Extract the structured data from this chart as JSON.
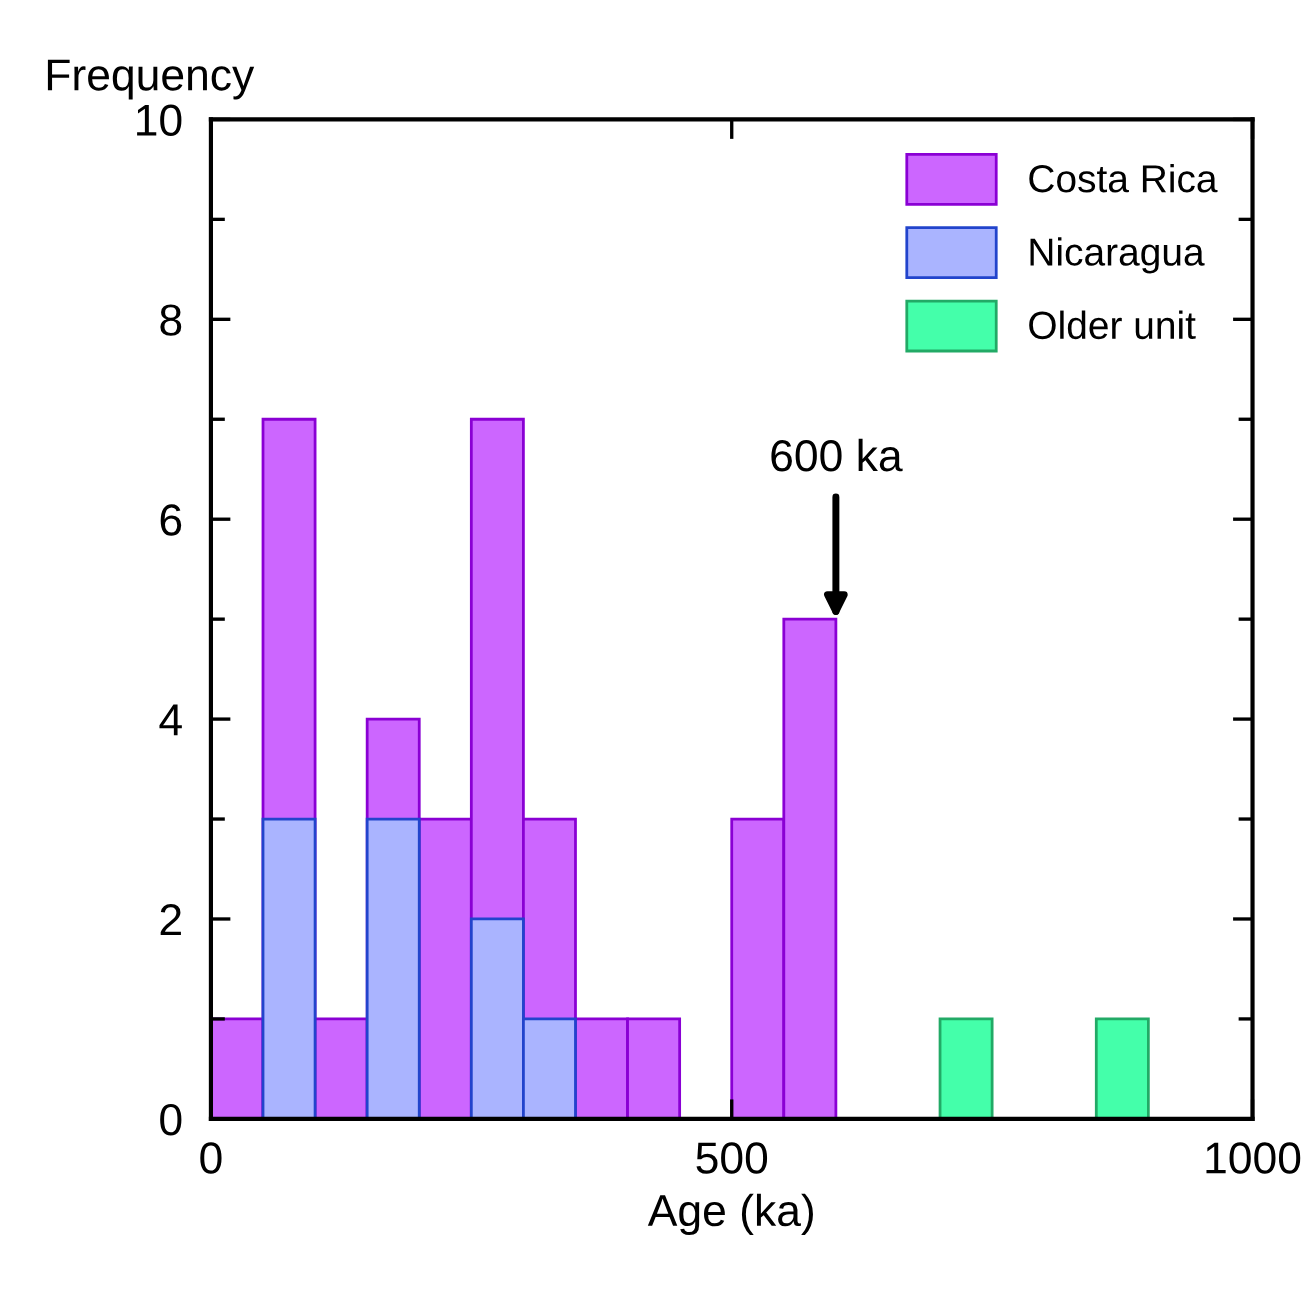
{
  "chart_data": {
    "type": "histogram",
    "xlabel": "Age (ka)",
    "ylabel": "Frequency",
    "bins": [
      0,
      50,
      100,
      150,
      200,
      250,
      300,
      350,
      400,
      450,
      500,
      550,
      600,
      650,
      700,
      750,
      800,
      850,
      900
    ],
    "series": [
      {
        "name": "Costa Rica",
        "color": "#cc66ff",
        "values": [
          1,
          7,
          1,
          4,
          3,
          7,
          3,
          1,
          1,
          0,
          3,
          5,
          0,
          0,
          0,
          0,
          0,
          0
        ]
      },
      {
        "name": "Nicaragua",
        "color": "#aab4ff",
        "values": [
          0,
          3,
          0,
          3,
          0,
          2,
          1,
          0,
          0,
          0,
          0,
          0,
          0,
          0,
          0,
          0,
          0,
          0
        ]
      },
      {
        "name": "Older unit",
        "color": "#44ffaa",
        "values": [
          0,
          0,
          0,
          0,
          0,
          0,
          0,
          0,
          0,
          0,
          0,
          0,
          0,
          0,
          1,
          0,
          0,
          1
        ]
      }
    ],
    "xlim": [
      0,
      1000
    ],
    "xticks": [
      0,
      500,
      1000
    ],
    "ylim": [
      0,
      10
    ],
    "yticks": [
      0,
      2,
      4,
      6,
      8,
      10
    ],
    "grid": false,
    "legend": "top right",
    "annotations": [
      {
        "text": "600 ka",
        "x": 600,
        "y": 5
      }
    ]
  }
}
